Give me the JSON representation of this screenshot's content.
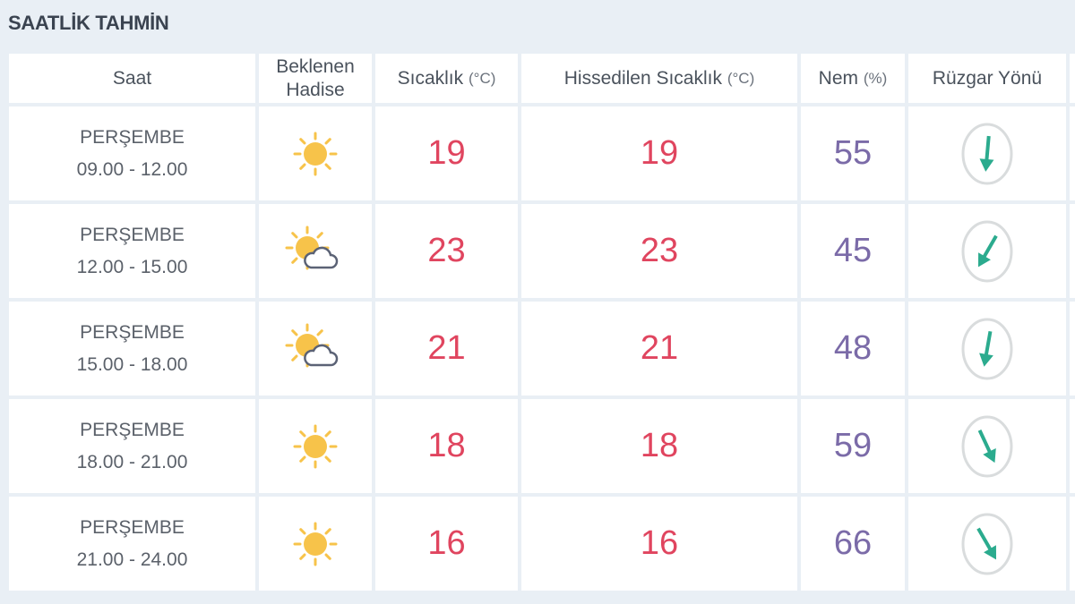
{
  "title": "SAATLİK TAHMİN",
  "headers": {
    "saat": "Saat",
    "hadise": "Beklenen Hadise",
    "sicaklik": "Sıcaklık",
    "sicaklik_unit": "(°C)",
    "hissedilen": "Hissedilen Sıcaklık",
    "hissedilen_unit": "(°C)",
    "nem": "Nem",
    "nem_unit": "(%)",
    "ruzgar": "Rüzgar Yönü"
  },
  "colors": {
    "temperature": "#e0455f",
    "humidity": "#7b6ba8",
    "wind_arrow": "#2bab8e",
    "sun": "#f7c34a"
  },
  "rows": [
    {
      "day": "PERŞEMBE",
      "time": "09.00 - 12.00",
      "icon": "sun",
      "temp": "19",
      "feels": "19",
      "humidity": "55",
      "wind_arrow_rotation_deg": 5
    },
    {
      "day": "PERŞEMBE",
      "time": "12.00 - 15.00",
      "icon": "sun-cloud",
      "temp": "23",
      "feels": "23",
      "humidity": "45",
      "wind_arrow_rotation_deg": 30
    },
    {
      "day": "PERŞEMBE",
      "time": "15.00 - 18.00",
      "icon": "sun-cloud",
      "temp": "21",
      "feels": "21",
      "humidity": "48",
      "wind_arrow_rotation_deg": 10
    },
    {
      "day": "PERŞEMBE",
      "time": "18.00 - 21.00",
      "icon": "sun",
      "temp": "18",
      "feels": "18",
      "humidity": "59",
      "wind_arrow_rotation_deg": -25
    },
    {
      "day": "PERŞEMBE",
      "time": "21.00 - 24.00",
      "icon": "sun",
      "temp": "16",
      "feels": "16",
      "humidity": "66",
      "wind_arrow_rotation_deg": -30
    }
  ]
}
